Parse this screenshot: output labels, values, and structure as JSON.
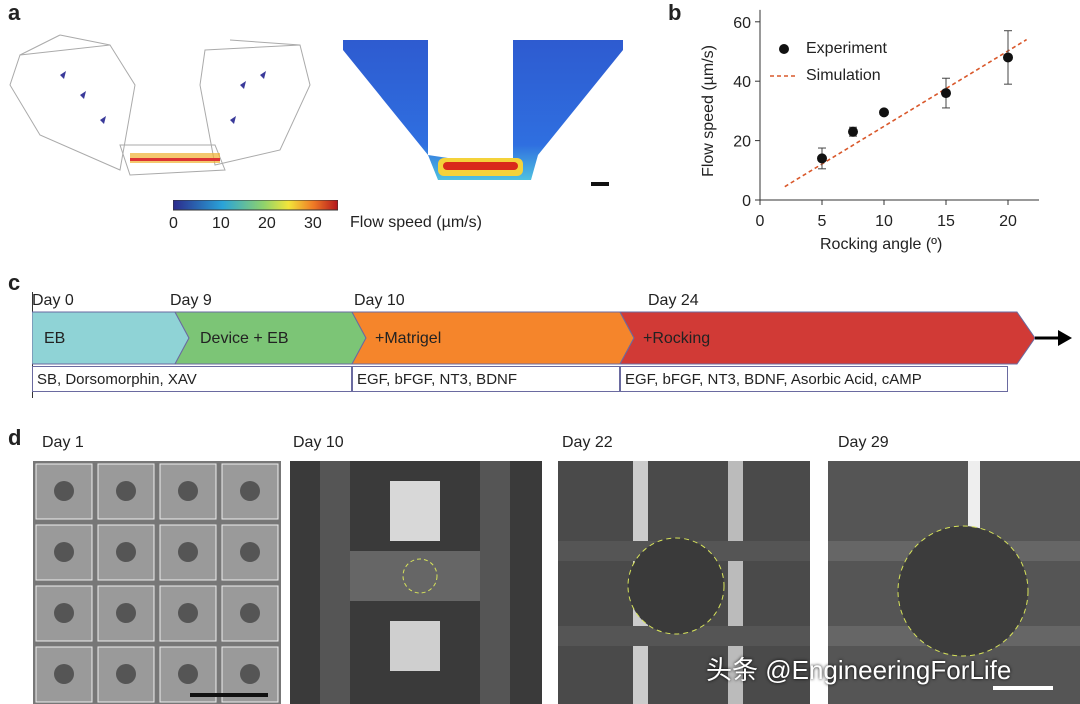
{
  "panels": {
    "a": "a",
    "b": "b",
    "c": "c",
    "d": "d"
  },
  "panel_a": {
    "colorbar_ticks": [
      "0",
      "10",
      "20",
      "30"
    ],
    "colorbar_label": "Flow speed (µm/s)"
  },
  "chart_data": {
    "type": "scatter",
    "xlabel": "Rocking angle (º)",
    "ylabel": "Flow speed (µm/s)",
    "xlim": [
      0,
      22.5
    ],
    "ylim": [
      0,
      64
    ],
    "xticks": [
      "0",
      "5",
      "10",
      "15",
      "20"
    ],
    "yticks": [
      "0",
      "20",
      "40",
      "60"
    ],
    "legend_position": "top-left",
    "series": [
      {
        "name": "Experiment",
        "type": "scatter",
        "x": [
          5,
          7.5,
          10,
          15,
          20
        ],
        "y": [
          14,
          23,
          29.5,
          36,
          48
        ],
        "error": [
          3.5,
          1.5,
          0.5,
          5,
          9
        ],
        "color": "#111111"
      },
      {
        "name": "Simulation",
        "type": "line",
        "x": [
          2,
          21.5
        ],
        "y": [
          4.5,
          54
        ],
        "color": "#d9582b"
      }
    ]
  },
  "timeline": {
    "days": [
      "Day 0",
      "Day 9",
      "Day 10",
      "Day 24"
    ],
    "stages": [
      {
        "label": "EB",
        "color": "#8fd3d6"
      },
      {
        "label": "Device + EB",
        "color": "#7cc576"
      },
      {
        "label": "+Matrigel",
        "color": "#f5852b"
      },
      {
        "label": "+Rocking",
        "color": "#d13a36"
      }
    ],
    "media": [
      "SB, Dorsomorphin, XAV",
      "EGF, bFGF, NT3, BDNF",
      "EGF, bFGF, NT3, BDNF, Asorbic Acid, cAMP"
    ]
  },
  "images": [
    {
      "label": "Day 1"
    },
    {
      "label": "Day 10"
    },
    {
      "label": "Day 22"
    },
    {
      "label": "Day 29"
    }
  ],
  "watermark": "头条 @EngineeringForLife"
}
